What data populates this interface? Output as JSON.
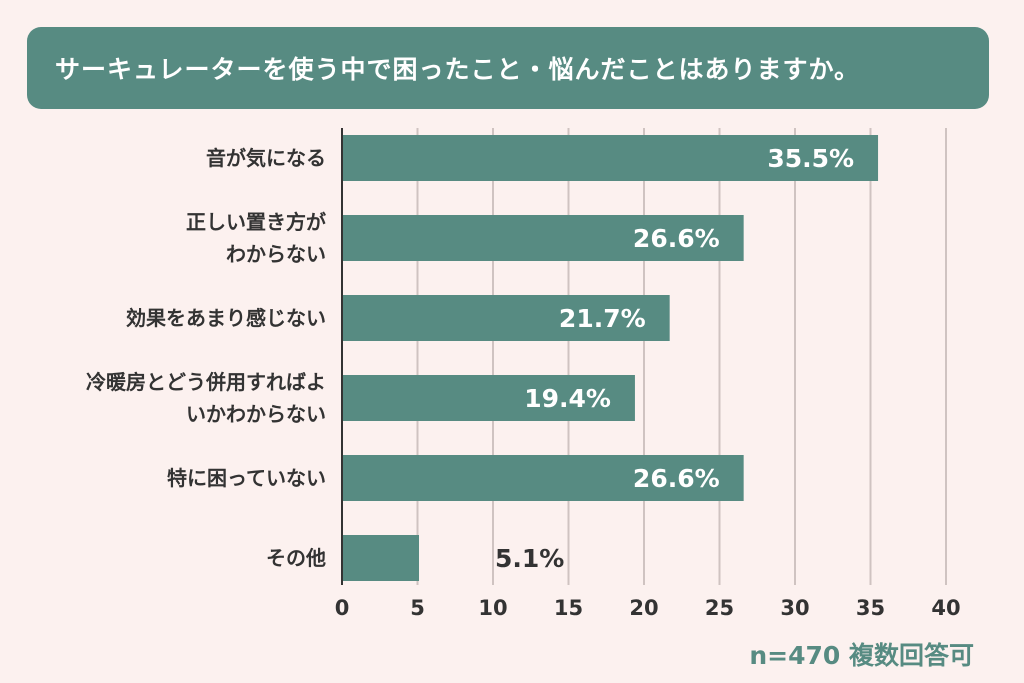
{
  "chart_data": {
    "type": "bar",
    "orientation": "horizontal",
    "title": "サーキュレーターを使う中で困ったこと・悩んだことはありますか。",
    "categories": [
      [
        "音が気になる"
      ],
      [
        "正しい置き方が",
        "わからない"
      ],
      [
        "効果をあまり感じない"
      ],
      [
        "冷暖房とどう併用すればよ",
        "いかわからない"
      ],
      [
        "特に困っていない"
      ],
      [
        "その他"
      ]
    ],
    "values": [
      35.5,
      26.6,
      21.7,
      19.4,
      26.6,
      5.1
    ],
    "value_labels": [
      "35.5%",
      "26.6%",
      "21.7%",
      "19.4%",
      "26.6%",
      "5.1%"
    ],
    "xlim": [
      0,
      40
    ],
    "xticks": [
      0,
      5,
      10,
      15,
      20,
      25,
      30,
      35,
      40
    ],
    "grid": "vertical",
    "note": "n=470 複数回答可",
    "colors": {
      "bar": "#578b82",
      "background": "#fcf1ef",
      "grid": "#cfc3c1",
      "axis": "#333333",
      "label_inside": "#ffffff",
      "label_outside": "#333333"
    }
  }
}
